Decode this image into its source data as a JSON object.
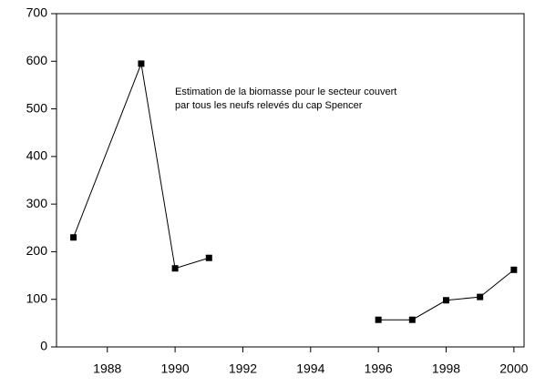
{
  "chart_data": {
    "type": "line",
    "annotation": [
      "Estimation de la biomasse pour le secteur couvert",
      "par tous les neufs relevés du cap Spencer"
    ],
    "series": [
      {
        "color": "#000000",
        "x": [
          1987,
          1989,
          1990,
          1991
        ],
        "values": [
          230,
          595,
          165,
          187
        ]
      },
      {
        "color": "#000000",
        "x": [
          1996,
          1997,
          1998,
          1999,
          2000
        ],
        "values": [
          57,
          57,
          98,
          105,
          162
        ]
      }
    ],
    "xlim": [
      1986.5,
      2000.3
    ],
    "xticks": [
      1988,
      1990,
      1992,
      1994,
      1996,
      1998,
      2000
    ],
    "ylim": [
      0,
      700
    ],
    "yticks": [
      0,
      100,
      200,
      300,
      400,
      500,
      600,
      700
    ],
    "grid": false
  }
}
